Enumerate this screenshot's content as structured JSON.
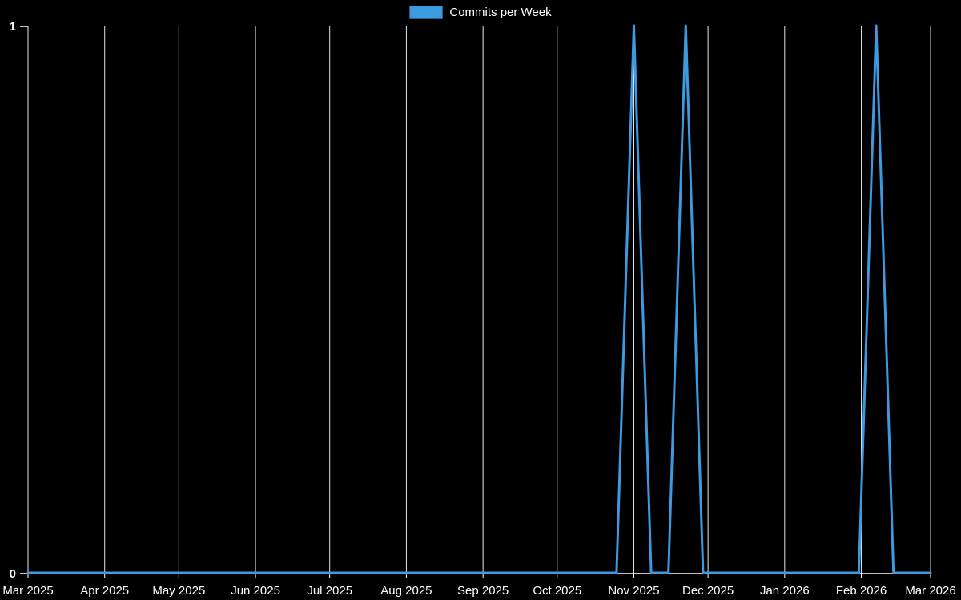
{
  "colors": {
    "background": "#000000",
    "text": "#ffffff",
    "grid": "#e6e6e6",
    "axis": "#ffffff",
    "line": "#3d9ae1"
  },
  "legend": {
    "label": "Commits per Week"
  },
  "chart_data": {
    "type": "line",
    "title": "Commits per Week",
    "legend_position": "top-center",
    "grid": "vertical-monthly",
    "x_range": [
      "2025-03-01",
      "2026-03-01"
    ],
    "ylim": [
      0,
      1
    ],
    "y_ticks": [
      0,
      1
    ],
    "x_tick_labels": [
      "Mar 2025",
      "Apr 2025",
      "May 2025",
      "Jun 2025",
      "Jul 2025",
      "Aug 2025",
      "Sep 2025",
      "Oct 2025",
      "Nov 2025",
      "Dec 2025",
      "Jan 2026",
      "Feb 2026",
      "Mar 2026"
    ],
    "series": [
      {
        "name": "Commits per Week",
        "points": [
          {
            "date": "2025-03-01",
            "value": 0
          },
          {
            "date": "2025-10-25",
            "value": 0
          },
          {
            "date": "2025-11-01",
            "value": 1
          },
          {
            "date": "2025-11-08",
            "value": 0
          },
          {
            "date": "2025-11-15",
            "value": 0
          },
          {
            "date": "2025-11-22",
            "value": 1
          },
          {
            "date": "2025-11-29",
            "value": 0
          },
          {
            "date": "2026-01-31",
            "value": 0
          },
          {
            "date": "2026-02-07",
            "value": 1
          },
          {
            "date": "2026-02-14",
            "value": 0
          },
          {
            "date": "2026-03-01",
            "value": 0
          }
        ]
      }
    ]
  }
}
